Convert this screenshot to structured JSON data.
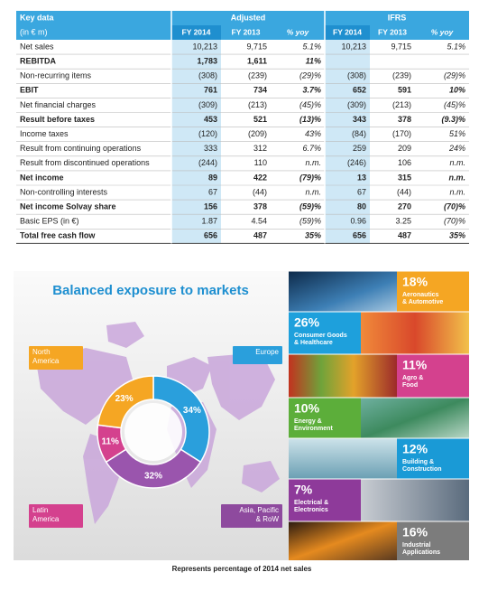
{
  "table": {
    "header": {
      "key": "Key data",
      "unit": "(in € m)",
      "groups": [
        "Adjusted",
        "IFRS"
      ],
      "columns": [
        "FY 2014",
        "FY 2013",
        "% yoy",
        "FY 2014",
        "FY 2013",
        "% yoy"
      ]
    },
    "rows": [
      {
        "label": "Net sales",
        "bold": false,
        "cells": [
          "10,213",
          "9,715",
          "5.1%",
          "10,213",
          "9,715",
          "5.1%"
        ]
      },
      {
        "label": "REBITDA",
        "bold": true,
        "cells": [
          "1,783",
          "1,611",
          "11%",
          null,
          null,
          null
        ]
      },
      {
        "label": "Non-recurring items",
        "bold": false,
        "cells": [
          "(308)",
          "(239)",
          "(29)%",
          "(308)",
          "(239)",
          "(29)%"
        ]
      },
      {
        "label": "EBIT",
        "bold": true,
        "cells": [
          "761",
          "734",
          "3.7%",
          "652",
          "591",
          "10%"
        ]
      },
      {
        "label": "Net financial charges",
        "bold": false,
        "cells": [
          "(309)",
          "(213)",
          "(45)%",
          "(309)",
          "(213)",
          "(45)%"
        ]
      },
      {
        "label": "Result before taxes",
        "bold": true,
        "cells": [
          "453",
          "521",
          "(13)%",
          "343",
          "378",
          "(9.3)%"
        ]
      },
      {
        "label": "Income taxes",
        "bold": false,
        "cells": [
          "(120)",
          "(209)",
          "43%",
          "(84)",
          "(170)",
          "51%"
        ]
      },
      {
        "label": "Result from continuing operations",
        "bold": false,
        "cells": [
          "333",
          "312",
          "6.7%",
          "259",
          "209",
          "24%"
        ]
      },
      {
        "label": "Result from discontinued operations",
        "bold": false,
        "cells": [
          "(244)",
          "110",
          "n.m.",
          "(246)",
          "106",
          "n.m."
        ]
      },
      {
        "label": "Net income",
        "bold": true,
        "cells": [
          "89",
          "422",
          "(79)%",
          "13",
          "315",
          "n.m."
        ]
      },
      {
        "label": "Non-controlling interests",
        "bold": false,
        "cells": [
          "67",
          "(44)",
          "n.m.",
          "67",
          "(44)",
          "n.m."
        ]
      },
      {
        "label": "Net income Solvay share",
        "bold": true,
        "cells": [
          "156",
          "378",
          "(59)%",
          "80",
          "270",
          "(70)%"
        ]
      },
      {
        "label": "Basic EPS (in €)",
        "bold": false,
        "cells": [
          "1.87",
          "4.54",
          "(59)%",
          "0.96",
          "3.25",
          "(70)%"
        ]
      },
      {
        "label": "Total free cash flow",
        "bold": true,
        "cells": [
          "656",
          "487",
          "35%",
          "656",
          "487",
          "35%"
        ]
      }
    ]
  },
  "infographic": {
    "title": "Balanced exposure to markets",
    "regions": [
      {
        "lines": [
          "North",
          "America"
        ],
        "color": "#f5a623"
      },
      {
        "lines": [
          "Europe"
        ],
        "color": "#2a9fdc"
      },
      {
        "lines": [
          "Latin",
          "America"
        ],
        "color": "#d4418e"
      },
      {
        "lines": [
          "Asia, Pacific",
          "& RoW"
        ],
        "color": "#8e4a9e"
      }
    ],
    "segments": [
      {
        "value": 34,
        "label": "34%",
        "color": "#2a9fdc"
      },
      {
        "value": 32,
        "label": "32%",
        "color": "#9a55ad"
      },
      {
        "value": 11,
        "label": "11%",
        "color": "#d4418e"
      },
      {
        "value": 23,
        "label": "23%",
        "color": "#f5a623"
      }
    ],
    "sectors": [
      {
        "percent": "18%",
        "lines": [
          "Aeronautics",
          "& Automotive"
        ],
        "color": "#f5a623"
      },
      {
        "percent": "26%",
        "lines": [
          "Consumer Goods",
          "& Healthcare"
        ],
        "color": "#1ea0dc"
      },
      {
        "percent": "11%",
        "lines": [
          "Agro &",
          "Food"
        ],
        "color": "#d4418e"
      },
      {
        "percent": "10%",
        "lines": [
          "Energy &",
          "Environment"
        ],
        "color": "#5cae3a"
      },
      {
        "percent": "12%",
        "lines": [
          "Building &",
          "Construction"
        ],
        "color": "#1a9ad6"
      },
      {
        "percent": "7%",
        "lines": [
          "Electrical &",
          "Electronics"
        ],
        "color": "#8e3a9a"
      },
      {
        "percent": "16%",
        "lines": [
          "Industrial",
          "Applications"
        ],
        "color": "#7c7c7c"
      }
    ],
    "caption": "Represents percentage of 2014 net sales"
  }
}
